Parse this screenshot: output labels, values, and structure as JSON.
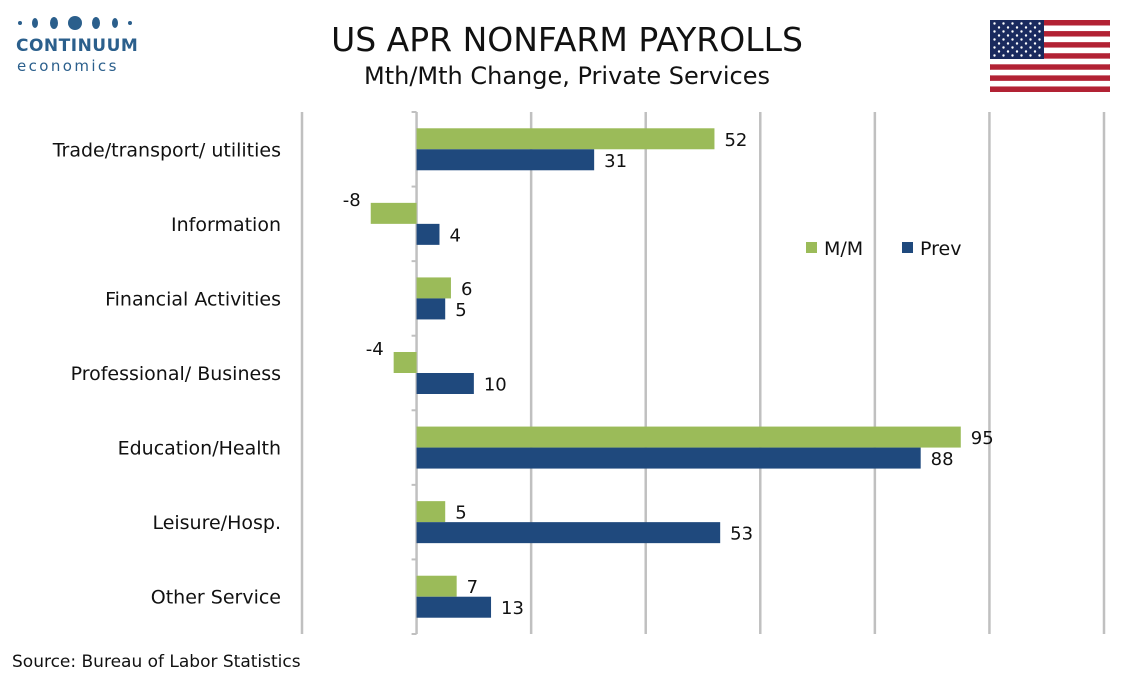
{
  "brand": {
    "name": "CONTINUUM",
    "sub": "economics",
    "color": "#2b5f8c"
  },
  "header": {
    "title": "US APR NONFARM PAYROLLS",
    "subtitle": "Mth/Mth Change, Private Services"
  },
  "footer": {
    "source": "Source: Bureau of Labor Statistics"
  },
  "flag_icon": "us-flag-icon",
  "chart_data": {
    "type": "bar",
    "orientation": "horizontal",
    "categories": [
      "Trade/transport/ utilities",
      "Information",
      "Financial Activities",
      "Professional/ Business",
      "Education/Health",
      "Leisure/Hosp.",
      "Other Service"
    ],
    "series": [
      {
        "name": "M/M",
        "color": "#9bbb59",
        "values": [
          52,
          -8,
          6,
          -4,
          95,
          5,
          7
        ]
      },
      {
        "name": "Prev",
        "color": "#1f497d",
        "values": [
          31,
          4,
          5,
          10,
          88,
          53,
          13
        ]
      }
    ],
    "xlim": [
      -20,
      120
    ],
    "grid": true,
    "legend": "right-middle"
  }
}
